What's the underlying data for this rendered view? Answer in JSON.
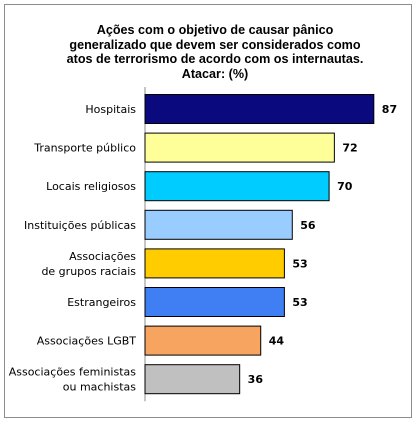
{
  "chart_data": {
    "type": "bar",
    "orientation": "horizontal",
    "title_lines": [
      "Ações com o objetivo de causar pânico",
      "generalizado que devem ser considerados  como",
      "atos de terrorismo  de acordo com os internautas.",
      "Atacar: (%)"
    ],
    "categories": [
      [
        "Hospitais"
      ],
      [
        "Transporte público"
      ],
      [
        "Locais religiosos"
      ],
      [
        "Instituições públicas"
      ],
      [
        "Associações",
        "de grupos raciais"
      ],
      [
        "Estrangeiros"
      ],
      [
        "Associações LGBT"
      ],
      [
        "Associações feministas",
        "ou machistas"
      ]
    ],
    "values": [
      87,
      72,
      70,
      56,
      53,
      53,
      44,
      36
    ],
    "colors": [
      "#0a0a7e",
      "#ffff9a",
      "#00ccff",
      "#99ccff",
      "#ffcc00",
      "#3f7ff3",
      "#f7a461",
      "#c0c0c0"
    ],
    "xlim": [
      0,
      100
    ],
    "grid": false,
    "legend": "none"
  }
}
